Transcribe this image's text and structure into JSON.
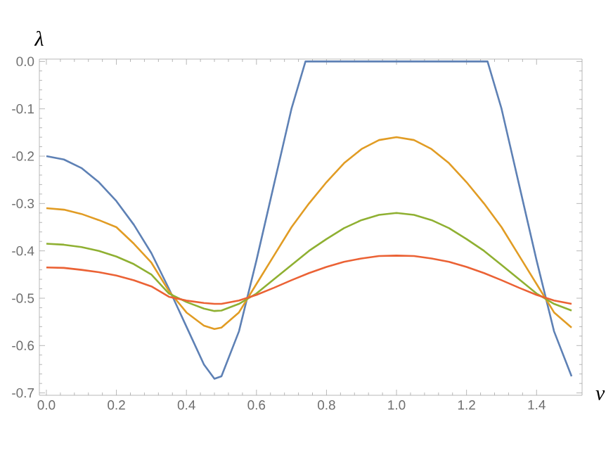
{
  "chart_data": {
    "type": "line",
    "xlabel": "ν",
    "ylabel": "λ",
    "xlim": [
      -0.02,
      1.53
    ],
    "ylim": [
      -0.705,
      0.005
    ],
    "xticks": [
      {
        "value": 0,
        "label": "0.0"
      },
      {
        "value": 0.2,
        "label": "0.2"
      },
      {
        "value": 0.4,
        "label": "0.4"
      },
      {
        "value": 0.6,
        "label": "0.6"
      },
      {
        "value": 0.8,
        "label": "0.8"
      },
      {
        "value": 1.0,
        "label": "1.0"
      },
      {
        "value": 1.2,
        "label": "1.2"
      },
      {
        "value": 1.4,
        "label": "1.4"
      }
    ],
    "yticks": [
      {
        "value": 0,
        "label": "0.0"
      },
      {
        "value": -0.1,
        "label": "-0.1"
      },
      {
        "value": -0.2,
        "label": "-0.2"
      },
      {
        "value": -0.3,
        "label": "-0.3"
      },
      {
        "value": -0.4,
        "label": "-0.4"
      },
      {
        "value": -0.5,
        "label": "-0.5"
      },
      {
        "value": -0.6,
        "label": "-0.6"
      },
      {
        "value": -0.7,
        "label": "-0.7"
      }
    ],
    "series": [
      {
        "color": "#5e81b5",
        "x": [
          0,
          0.05,
          0.1,
          0.15,
          0.2,
          0.25,
          0.3,
          0.35,
          0.4,
          0.45,
          0.48,
          0.5,
          0.55,
          0.6,
          0.65,
          0.7,
          0.74,
          1.26,
          1.3,
          1.35,
          1.4,
          1.45,
          1.5
        ],
        "values": [
          -0.2,
          -0.207,
          -0.225,
          -0.255,
          -0.295,
          -0.345,
          -0.405,
          -0.48,
          -0.56,
          -0.64,
          -0.67,
          -0.665,
          -0.57,
          -0.42,
          -0.26,
          -0.1,
          0,
          0,
          -0.1,
          -0.26,
          -0.42,
          -0.57,
          -0.665
        ]
      },
      {
        "color": "#e19c24",
        "x": [
          0,
          0.05,
          0.1,
          0.15,
          0.2,
          0.25,
          0.3,
          0.35,
          0.4,
          0.45,
          0.48,
          0.5,
          0.55,
          0.6,
          0.65,
          0.7,
          0.75,
          0.8,
          0.85,
          0.9,
          0.95,
          1.0,
          1.05,
          1.1,
          1.15,
          1.2,
          1.25,
          1.3,
          1.35,
          1.4,
          1.45,
          1.5
        ],
        "values": [
          -0.31,
          -0.313,
          -0.322,
          -0.335,
          -0.35,
          -0.385,
          -0.425,
          -0.485,
          -0.53,
          -0.558,
          -0.565,
          -0.562,
          -0.53,
          -0.47,
          -0.41,
          -0.35,
          -0.3,
          -0.255,
          -0.215,
          -0.185,
          -0.166,
          -0.16,
          -0.166,
          -0.185,
          -0.215,
          -0.255,
          -0.3,
          -0.35,
          -0.41,
          -0.47,
          -0.53,
          -0.562
        ]
      },
      {
        "color": "#8fb032",
        "x": [
          0,
          0.05,
          0.1,
          0.15,
          0.2,
          0.25,
          0.3,
          0.35,
          0.4,
          0.45,
          0.48,
          0.5,
          0.55,
          0.6,
          0.65,
          0.7,
          0.75,
          0.8,
          0.85,
          0.9,
          0.95,
          1.0,
          1.05,
          1.1,
          1.15,
          1.2,
          1.25,
          1.3,
          1.35,
          1.4,
          1.45,
          1.5
        ],
        "values": [
          -0.385,
          -0.387,
          -0.392,
          -0.4,
          -0.412,
          -0.428,
          -0.45,
          -0.49,
          -0.508,
          -0.522,
          -0.527,
          -0.526,
          -0.512,
          -0.49,
          -0.46,
          -0.43,
          -0.4,
          -0.375,
          -0.352,
          -0.335,
          -0.324,
          -0.32,
          -0.324,
          -0.335,
          -0.352,
          -0.375,
          -0.4,
          -0.43,
          -0.46,
          -0.49,
          -0.512,
          -0.526
        ]
      },
      {
        "color": "#eb6235",
        "x": [
          0,
          0.05,
          0.1,
          0.15,
          0.2,
          0.25,
          0.3,
          0.35,
          0.4,
          0.45,
          0.48,
          0.5,
          0.55,
          0.6,
          0.65,
          0.7,
          0.75,
          0.8,
          0.85,
          0.9,
          0.95,
          1.0,
          1.05,
          1.1,
          1.15,
          1.2,
          1.25,
          1.3,
          1.35,
          1.4,
          1.45,
          1.5
        ],
        "values": [
          -0.435,
          -0.436,
          -0.44,
          -0.445,
          -0.452,
          -0.462,
          -0.475,
          -0.497,
          -0.505,
          -0.51,
          -0.512,
          -0.512,
          -0.505,
          -0.493,
          -0.478,
          -0.462,
          -0.447,
          -0.434,
          -0.423,
          -0.416,
          -0.411,
          -0.41,
          -0.411,
          -0.416,
          -0.423,
          -0.434,
          -0.447,
          -0.462,
          -0.478,
          -0.493,
          -0.505,
          -0.512
        ]
      }
    ]
  }
}
